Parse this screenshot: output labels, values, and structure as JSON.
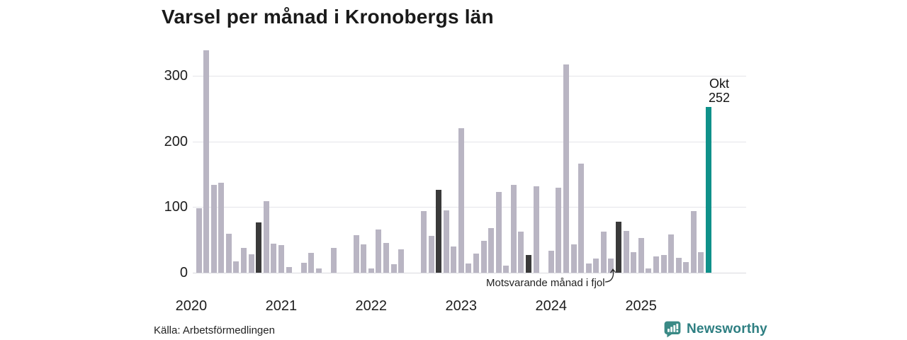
{
  "title": "Varsel per månad i Kronobergs län",
  "source": "Källa: Arbetsförmedlingen",
  "annotation": {
    "label": "Motsvarande månad i fjol"
  },
  "current_label": {
    "month": "Okt",
    "value": "252"
  },
  "branding": {
    "name": "Newsworthy",
    "icon": "newsworthy-chart-bubble-icon"
  },
  "colors": {
    "bar": "#b9b5c3",
    "fjol_highlight": "#3a3a3a",
    "current_highlight": "#0f918a",
    "logo": "#2e7f82",
    "logo_icon": "#3a8a86",
    "gridline": "#e4e4e9"
  },
  "chart_data": {
    "type": "bar",
    "title": "Varsel per månad i Kronobergs län",
    "xlabel": "",
    "ylabel": "",
    "y_ticks": [
      0,
      100,
      200,
      300
    ],
    "ylim": [
      0,
      360
    ],
    "grid": "horizontal",
    "x_tick_labels": [
      "2020",
      "2021",
      "2022",
      "2023",
      "2024",
      "2025"
    ],
    "start_month": "2020-02",
    "legend": "none",
    "highlight_meaning": {
      "fjol": "Motsvarande månad i fjol",
      "current": "Okt (252)"
    },
    "series": [
      {
        "name": "Varsel per månad",
        "points": [
          [
            "2020-02",
            98,
            "normal"
          ],
          [
            "2020-03",
            339,
            "normal"
          ],
          [
            "2020-04",
            134,
            "normal"
          ],
          [
            "2020-05",
            137,
            "normal"
          ],
          [
            "2020-06",
            59,
            "normal"
          ],
          [
            "2020-07",
            17,
            "normal"
          ],
          [
            "2020-08",
            38,
            "normal"
          ],
          [
            "2020-09",
            28,
            "normal"
          ],
          [
            "2020-10",
            77,
            "fjol"
          ],
          [
            "2020-11",
            109,
            "normal"
          ],
          [
            "2020-12",
            44,
            "normal"
          ],
          [
            "2021-01",
            42,
            "normal"
          ],
          [
            "2021-02",
            9,
            "normal"
          ],
          [
            "2021-03",
            0,
            "normal"
          ],
          [
            "2021-04",
            15,
            "normal"
          ],
          [
            "2021-05",
            30,
            "normal"
          ],
          [
            "2021-06",
            7,
            "normal"
          ],
          [
            "2021-07",
            0,
            "normal"
          ],
          [
            "2021-08",
            38,
            "normal"
          ],
          [
            "2021-09",
            0,
            "normal"
          ],
          [
            "2021-10",
            0,
            "fjol"
          ],
          [
            "2021-11",
            57,
            "normal"
          ],
          [
            "2021-12",
            43,
            "normal"
          ],
          [
            "2022-01",
            6,
            "normal"
          ],
          [
            "2022-02",
            66,
            "normal"
          ],
          [
            "2022-03",
            45,
            "normal"
          ],
          [
            "2022-04",
            13,
            "normal"
          ],
          [
            "2022-05",
            36,
            "normal"
          ],
          [
            "2022-06",
            0,
            "normal"
          ],
          [
            "2022-07",
            0,
            "normal"
          ],
          [
            "2022-08",
            94,
            "normal"
          ],
          [
            "2022-09",
            56,
            "normal"
          ],
          [
            "2022-10",
            126,
            "fjol"
          ],
          [
            "2022-11",
            95,
            "normal"
          ],
          [
            "2022-12",
            40,
            "normal"
          ],
          [
            "2023-01",
            220,
            "normal"
          ],
          [
            "2023-02",
            14,
            "normal"
          ],
          [
            "2023-03",
            29,
            "normal"
          ],
          [
            "2023-04",
            49,
            "normal"
          ],
          [
            "2023-05",
            68,
            "normal"
          ],
          [
            "2023-06",
            123,
            "normal"
          ],
          [
            "2023-07",
            11,
            "normal"
          ],
          [
            "2023-08",
            134,
            "normal"
          ],
          [
            "2023-09",
            63,
            "normal"
          ],
          [
            "2023-10",
            27,
            "fjol"
          ],
          [
            "2023-11",
            132,
            "normal"
          ],
          [
            "2023-12",
            0,
            "normal"
          ],
          [
            "2024-01",
            34,
            "normal"
          ],
          [
            "2024-02",
            130,
            "normal"
          ],
          [
            "2024-03",
            317,
            "normal"
          ],
          [
            "2024-04",
            43,
            "normal"
          ],
          [
            "2024-05",
            166,
            "normal"
          ],
          [
            "2024-06",
            14,
            "normal"
          ],
          [
            "2024-07",
            22,
            "normal"
          ],
          [
            "2024-08",
            63,
            "normal"
          ],
          [
            "2024-09",
            22,
            "normal"
          ],
          [
            "2024-10",
            78,
            "fjol"
          ],
          [
            "2024-11",
            64,
            "normal"
          ],
          [
            "2024-12",
            31,
            "normal"
          ],
          [
            "2025-01",
            53,
            "normal"
          ],
          [
            "2025-02",
            6,
            "normal"
          ],
          [
            "2025-03",
            25,
            "normal"
          ],
          [
            "2025-04",
            27,
            "normal"
          ],
          [
            "2025-05",
            58,
            "normal"
          ],
          [
            "2025-06",
            23,
            "normal"
          ],
          [
            "2025-07",
            16,
            "normal"
          ],
          [
            "2025-08",
            94,
            "normal"
          ],
          [
            "2025-09",
            31,
            "normal"
          ],
          [
            "2025-10",
            252,
            "current"
          ]
        ]
      }
    ]
  }
}
